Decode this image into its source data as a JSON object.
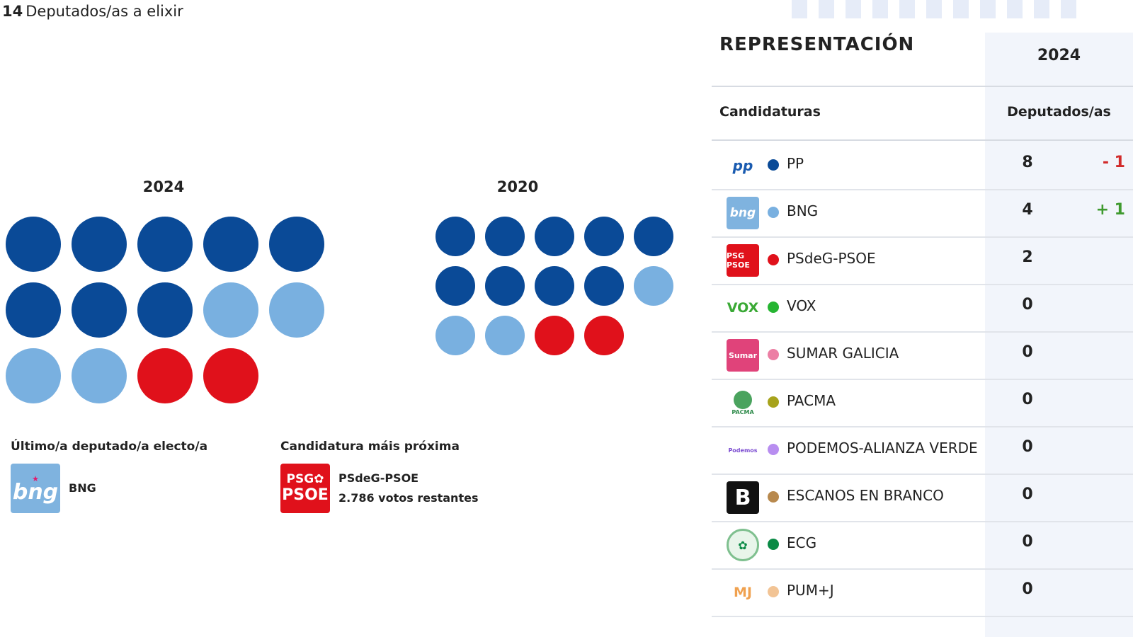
{
  "summary": {
    "seats_total": "14",
    "seats_label": "Deputados/as a elixir"
  },
  "parliament_2024": {
    "year": "2024"
  },
  "parliament_2020": {
    "year": "2020"
  },
  "colors": {
    "PP": "#0a4a97",
    "BNG": "#79b0e0",
    "PSdeG-PSOE": "#e0111b"
  },
  "last_elected": {
    "title": "Último/a deputado/a electo/a",
    "party": "BNG"
  },
  "closest": {
    "title": "Candidatura máis próxima",
    "party": "PSdeG-PSOE",
    "votes": "2.786 votos restantes"
  },
  "representation": {
    "title": "REPRESENTACIÓN",
    "year": "2024",
    "col_candidaturas": "Candidaturas",
    "col_deputados": "Deputados/as",
    "rows": [
      {
        "name": "PP",
        "seats": "8",
        "diff": "- 1",
        "color": "#0a4a97",
        "logo_icon": "pp-logo-icon",
        "logo_text": "pp"
      },
      {
        "name": "BNG",
        "seats": "4",
        "diff": "+ 1",
        "color": "#79b0e0",
        "logo_icon": "bng-logo-icon",
        "logo_text": "bng"
      },
      {
        "name": "PSdeG-PSOE",
        "seats": "2",
        "diff": "",
        "color": "#e0111b",
        "logo_icon": "psdeg-psoe-logo-icon",
        "logo_text": "PSG PSOE"
      },
      {
        "name": "VOX",
        "seats": "0",
        "diff": "",
        "color": "#26b532",
        "logo_icon": "vox-logo-icon",
        "logo_text": "VOX"
      },
      {
        "name": "SUMAR GALICIA",
        "seats": "0",
        "diff": "",
        "color": "#ec7fa4",
        "logo_icon": "sumar-logo-icon",
        "logo_text": "Sumar"
      },
      {
        "name": "PACMA",
        "seats": "0",
        "diff": "",
        "color": "#a7a31c",
        "logo_icon": "pacma-logo-icon",
        "logo_text": "PACMA"
      },
      {
        "name": "PODEMOS-ALIANZA VERDE",
        "seats": "0",
        "diff": "",
        "color": "#b88ef0",
        "logo_icon": "podemos-logo-icon",
        "logo_text": "Podemos"
      },
      {
        "name": "ESCANOS EN BRANCO",
        "seats": "0",
        "diff": "",
        "color": "#b8894e",
        "logo_icon": "escanos-en-branco-logo-icon",
        "logo_text": "B"
      },
      {
        "name": "ECG",
        "seats": "0",
        "diff": "",
        "color": "#0a8a45",
        "logo_icon": "ecg-logo-icon",
        "logo_text": ""
      },
      {
        "name": "PUM+J",
        "seats": "0",
        "diff": "",
        "color": "#f2c495",
        "logo_icon": "pumj-logo-icon",
        "logo_text": "MJ"
      }
    ]
  }
}
